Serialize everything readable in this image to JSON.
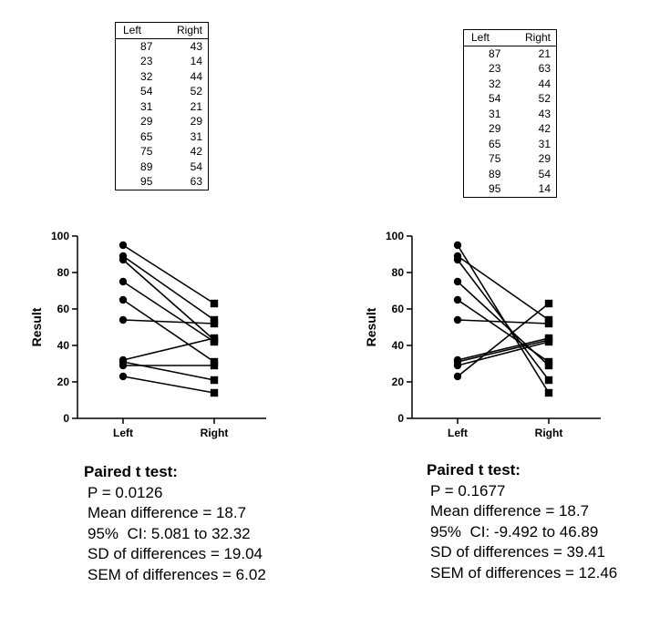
{
  "chart_data": [
    {
      "type": "line",
      "subtype": "paired before-after",
      "table": {
        "headers": [
          "Left",
          "Right"
        ],
        "rows": [
          [
            87,
            43
          ],
          [
            23,
            14
          ],
          [
            32,
            44
          ],
          [
            54,
            52
          ],
          [
            31,
            21
          ],
          [
            29,
            29
          ],
          [
            65,
            31
          ],
          [
            75,
            42
          ],
          [
            89,
            54
          ],
          [
            95,
            63
          ]
        ]
      },
      "categories": [
        "Left",
        "Right"
      ],
      "ylabel": "Result",
      "ylim": [
        0,
        100
      ],
      "yticks": [
        0,
        20,
        40,
        60,
        80,
        100
      ],
      "markers": {
        "Left": "circle",
        "Right": "square"
      },
      "stats": {
        "title": "Paired t test:",
        "lines": [
          "P = 0.0126",
          "Mean difference = 18.7",
          "95%  CI: 5.081 to 32.32",
          "SD of differences = 19.04",
          "SEM of differences = 6.02"
        ]
      }
    },
    {
      "type": "line",
      "subtype": "paired before-after",
      "table": {
        "headers": [
          "Left",
          "Right"
        ],
        "rows": [
          [
            87,
            21
          ],
          [
            23,
            63
          ],
          [
            32,
            44
          ],
          [
            54,
            52
          ],
          [
            31,
            43
          ],
          [
            29,
            42
          ],
          [
            65,
            31
          ],
          [
            75,
            29
          ],
          [
            89,
            54
          ],
          [
            95,
            14
          ]
        ]
      },
      "categories": [
        "Left",
        "Right"
      ],
      "ylabel": "Result",
      "ylim": [
        0,
        100
      ],
      "yticks": [
        0,
        20,
        40,
        60,
        80,
        100
      ],
      "markers": {
        "Left": "circle",
        "Right": "square"
      },
      "stats": {
        "title": "Paired t test:",
        "lines": [
          "P = 0.1677",
          "Mean difference = 18.7",
          "95%  CI: -9.492 to 46.89",
          "SD of differences = 39.41",
          "SEM of differences = 12.46"
        ]
      }
    }
  ]
}
